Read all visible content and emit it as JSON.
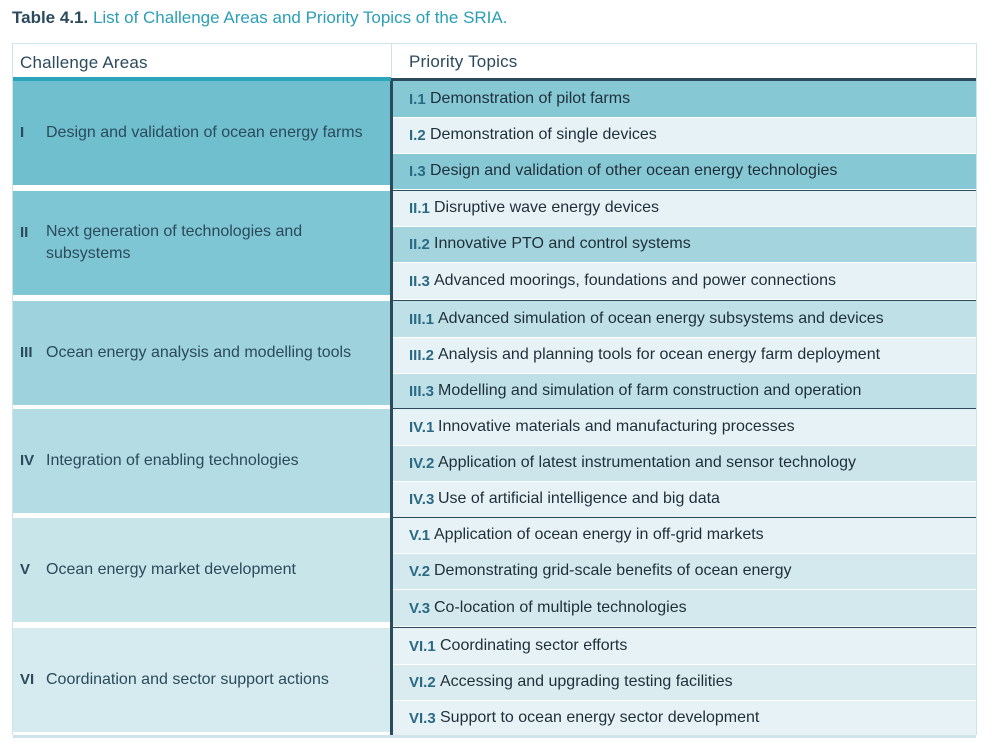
{
  "caption": {
    "label": "Table 4.1.",
    "text": "List of Challenge Areas and Priority Topics of the SRIA."
  },
  "header": {
    "col1": "Challenge Areas",
    "col2": "Priority Topics"
  },
  "colors": {
    "accent_teal": "#2aa5bb",
    "dark_navy": "#2b4a5c",
    "area_I": "#6fbfcf",
    "area_II": "#7ec6d3",
    "area_III": "#9ed2dd",
    "area_IV": "#b4dce4",
    "area_V": "#c8e5ea",
    "area_VI": "#d5ebef"
  },
  "areas": [
    {
      "roman": "I",
      "title": "Design and validation of ocean energy farms",
      "topics": [
        {
          "code": "I.1",
          "text": "Demonstration of pilot farms"
        },
        {
          "code": "I.2",
          "text": "Demonstration of single devices"
        },
        {
          "code": "I.3",
          "text": "Design and validation of other ocean energy technologies"
        }
      ]
    },
    {
      "roman": "II",
      "title": "Next generation of technologies and subsystems",
      "topics": [
        {
          "code": "II.1",
          "text": "Disruptive wave energy devices"
        },
        {
          "code": "II.2",
          "text": "Innovative PTO and control systems"
        },
        {
          "code": "II.3",
          "text": "Advanced moorings, foundations and power connections"
        }
      ]
    },
    {
      "roman": "III",
      "title": "Ocean energy analysis and modelling tools",
      "topics": [
        {
          "code": "III.1",
          "text": "Advanced simulation of ocean energy subsystems and devices"
        },
        {
          "code": "III.2",
          "text": "Analysis and planning tools for ocean energy farm deployment"
        },
        {
          "code": "III.3",
          "text": "Modelling and simulation of farm construction and operation"
        }
      ]
    },
    {
      "roman": "IV",
      "title": "Integration of enabling technologies",
      "topics": [
        {
          "code": "IV.1",
          "text": "Innovative materials and manufacturing processes"
        },
        {
          "code": "IV.2",
          "text": "Application of latest instrumentation and sensor technology"
        },
        {
          "code": "IV.3",
          "text": "Use of artificial intelligence and big data"
        }
      ]
    },
    {
      "roman": "V",
      "title": "Ocean energy market development",
      "topics": [
        {
          "code": "V.1",
          "text": "Application of ocean energy in off-grid markets"
        },
        {
          "code": "V.2",
          "text": "Demonstrating grid-scale benefits of ocean energy"
        },
        {
          "code": "V.3",
          "text": "Co-location of multiple technologies"
        }
      ]
    },
    {
      "roman": "VI",
      "title": "Coordination and sector support actions",
      "topics": [
        {
          "code": "VI.1",
          "text": "Coordinating sector efforts"
        },
        {
          "code": "VI.2",
          "text": "Accessing and upgrading testing facilities"
        },
        {
          "code": "VI.3",
          "text": "Support to ocean energy sector development"
        }
      ]
    }
  ]
}
